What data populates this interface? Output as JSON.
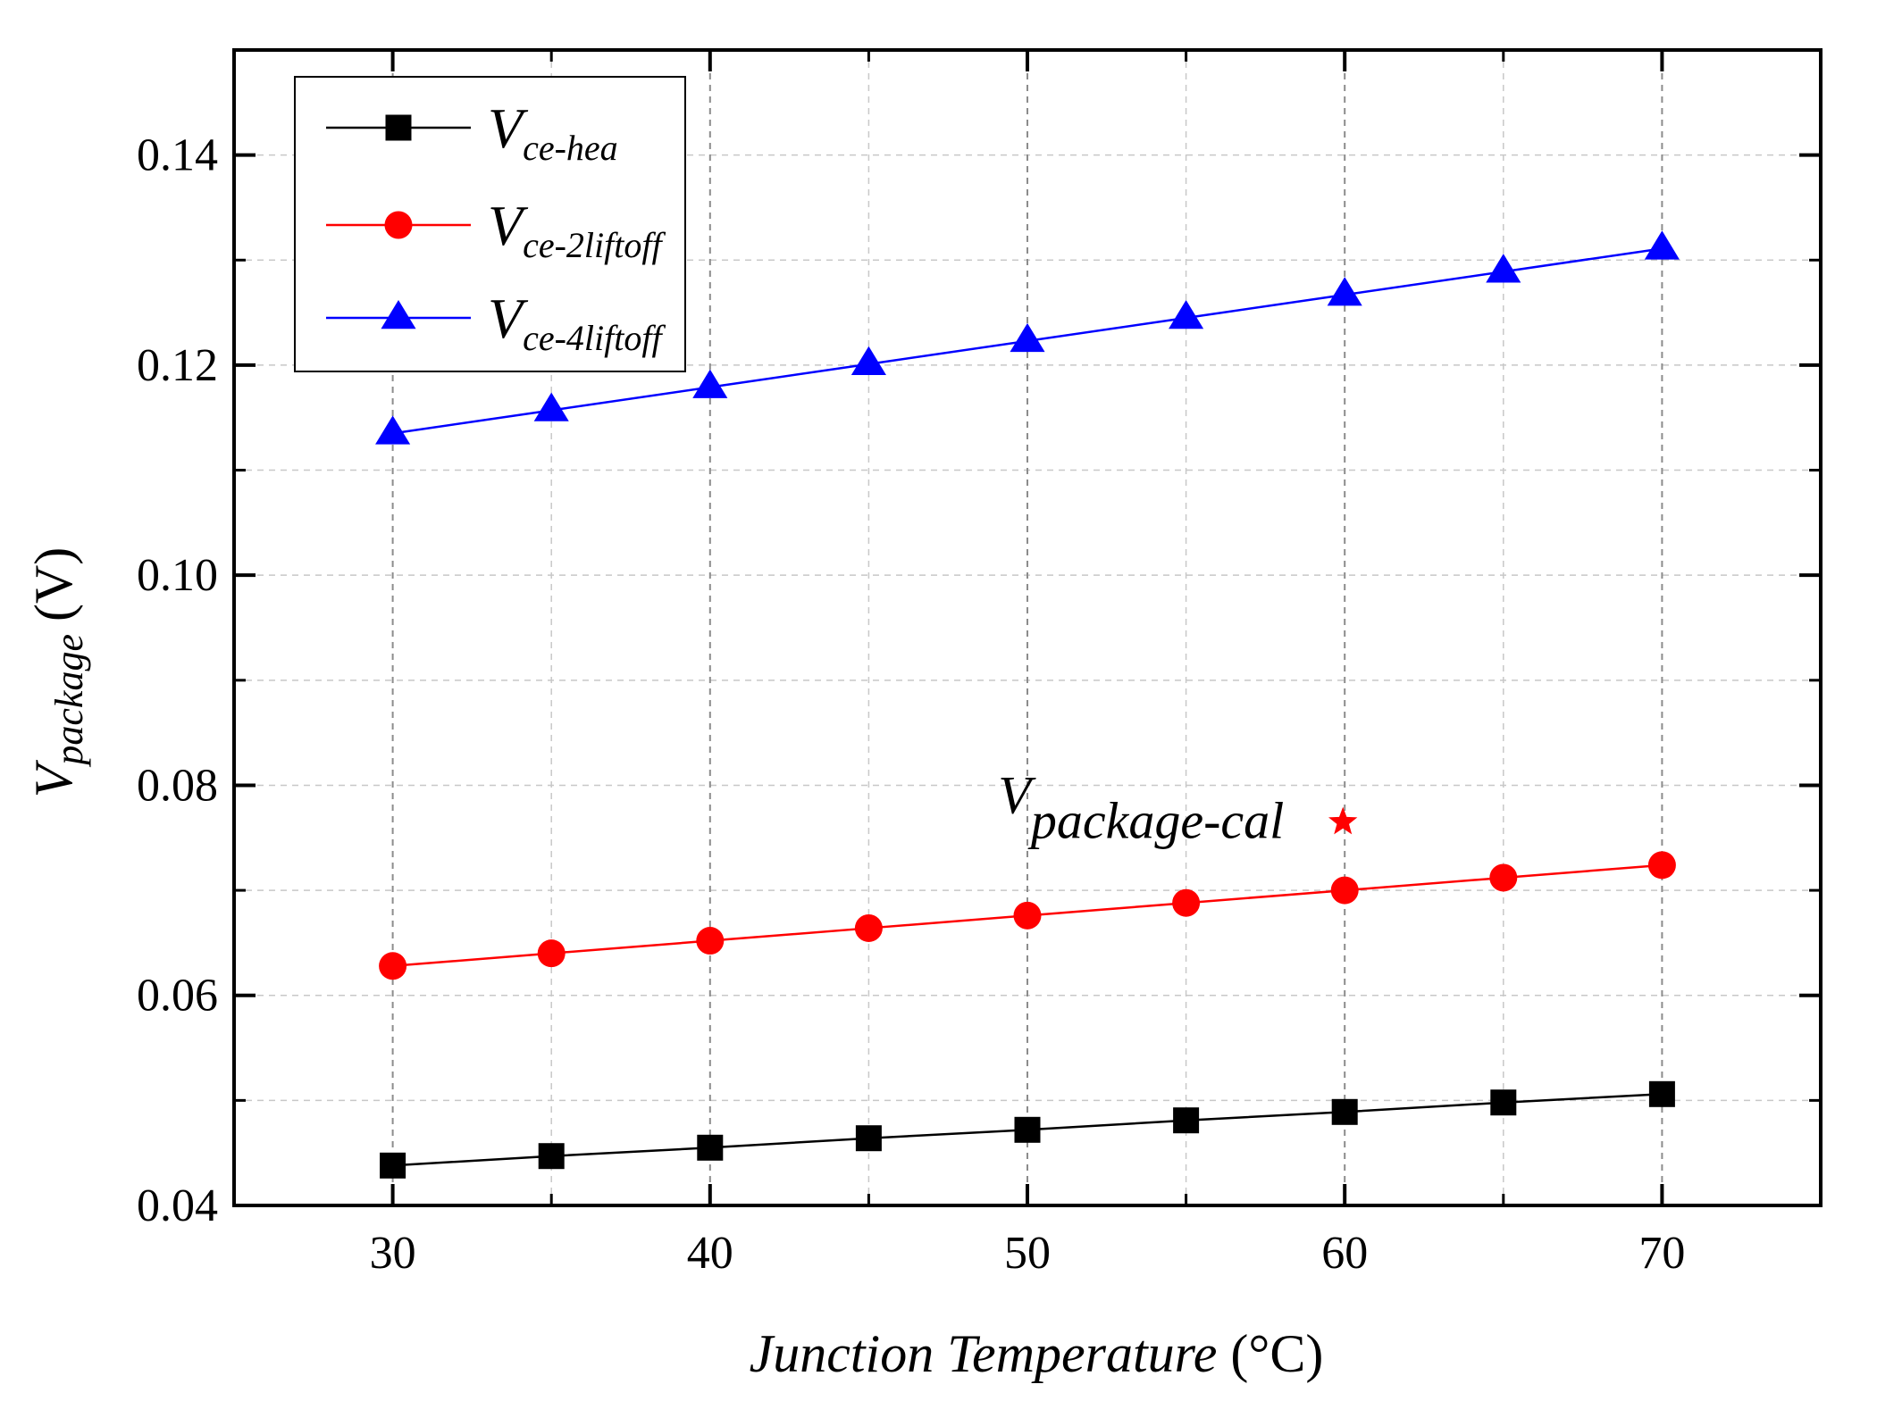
{
  "chart_data": {
    "type": "line",
    "title": "",
    "xlabel": "Junction Temperature",
    "xlabel_unit": "(°C)",
    "ylabel": "V",
    "ylabel_sub": "package",
    "ylabel_unit": "(V)",
    "xlim": [
      25,
      75
    ],
    "ylim": [
      0.04,
      0.15
    ],
    "x_ticks": [
      30,
      40,
      50,
      60,
      70
    ],
    "x_tick_labels": [
      "30",
      "40",
      "50",
      "60",
      "70"
    ],
    "y_ticks": [
      0.04,
      0.06,
      0.08,
      0.1,
      0.12,
      0.14
    ],
    "y_tick_labels": [
      "0.04",
      "0.06",
      "0.08",
      "0.10",
      "0.12",
      "0.14"
    ],
    "grid": true,
    "legend_position": "top-left",
    "x": [
      30,
      35,
      40,
      45,
      50,
      55,
      60,
      65,
      70
    ],
    "series": [
      {
        "name": "V",
        "subscript": "ce-hea",
        "color": "#000000",
        "marker": "square",
        "values": [
          0.0438,
          0.0447,
          0.0455,
          0.0464,
          0.0472,
          0.0481,
          0.0489,
          0.0498,
          0.0506
        ]
      },
      {
        "name": "V",
        "subscript": "ce-2liftoff",
        "color": "#ff0000",
        "marker": "circle",
        "values": [
          0.0628,
          0.064,
          0.0652,
          0.0664,
          0.0676,
          0.0688,
          0.07,
          0.0712,
          0.0724
        ]
      },
      {
        "name": "V",
        "subscript": "ce-4liftoff",
        "color": "#0000ff",
        "marker": "triangle",
        "values": [
          0.1135,
          0.1157,
          0.1179,
          0.1201,
          0.1223,
          0.1245,
          0.1267,
          0.1289,
          0.1311
        ]
      }
    ],
    "annotations": [
      {
        "label": "V",
        "subscript": "package-cal",
        "x": 60,
        "y": 0.0765,
        "marker": "star",
        "color": "#ff0000"
      }
    ]
  }
}
